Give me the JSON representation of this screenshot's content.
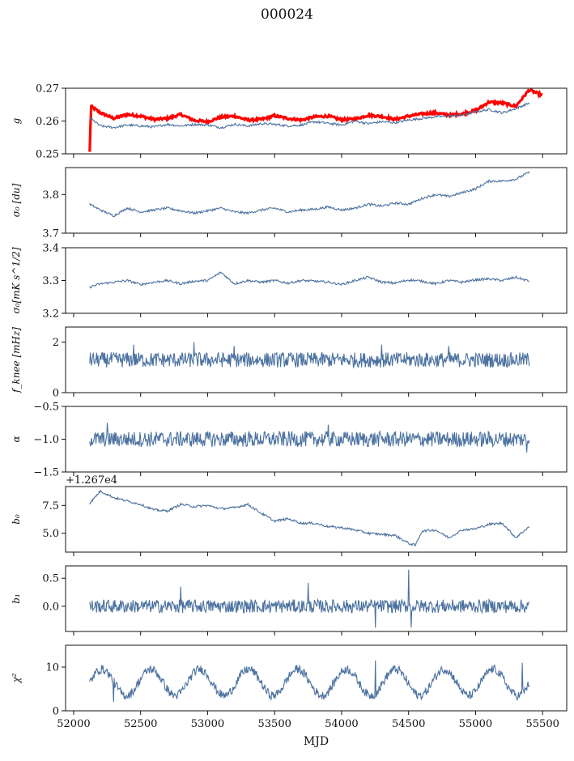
{
  "title": "000024",
  "xlabel": "MJD",
  "x_ticks": [
    52000,
    52500,
    53000,
    53500,
    54000,
    54500,
    55000,
    55500
  ],
  "x_range": [
    51940,
    55680
  ],
  "colors": {
    "series": "#4c72a0",
    "red": "#ff0000",
    "axis": "#111111"
  },
  "chart_data": [
    {
      "type": "line",
      "id": "g",
      "ylabel": "g",
      "ylim": [
        0.25,
        0.27
      ],
      "yticks": [
        "0.25",
        "0.26",
        "0.27"
      ],
      "grid": false,
      "series": [
        {
          "color": "#ff0000",
          "x": [
            52120,
            52130,
            52200,
            52300,
            52400,
            52500,
            52600,
            52700,
            52800,
            52900,
            53000,
            53100,
            53200,
            53300,
            53400,
            53500,
            53600,
            53700,
            53800,
            53900,
            54000,
            54100,
            54200,
            54300,
            54400,
            54500,
            54600,
            54700,
            54800,
            54900,
            55000,
            55100,
            55200,
            55300,
            55400,
            55500
          ],
          "y": [
            0.2505,
            0.2645,
            0.2625,
            0.2608,
            0.262,
            0.2615,
            0.2605,
            0.2608,
            0.262,
            0.2602,
            0.2598,
            0.2612,
            0.2615,
            0.2603,
            0.2605,
            0.2616,
            0.2608,
            0.2603,
            0.2613,
            0.2615,
            0.2604,
            0.2606,
            0.2618,
            0.2614,
            0.2605,
            0.2615,
            0.2622,
            0.2625,
            0.2618,
            0.2622,
            0.2632,
            0.2658,
            0.2655,
            0.2645,
            0.2695,
            0.2678
          ]
        },
        {
          "x": [
            52120,
            52200,
            52300,
            52400,
            52500,
            52600,
            52700,
            52800,
            52900,
            53000,
            53100,
            53200,
            53300,
            53400,
            53500,
            53600,
            53700,
            53800,
            53900,
            54000,
            54100,
            54200,
            54300,
            54400,
            54500,
            54600,
            54700,
            54800,
            54900,
            55000,
            55100,
            55200,
            55300,
            55400
          ],
          "y": [
            0.261,
            0.2585,
            0.258,
            0.2588,
            0.2585,
            0.2582,
            0.259,
            0.2585,
            0.259,
            0.2588,
            0.258,
            0.259,
            0.2585,
            0.2592,
            0.259,
            0.2585,
            0.2588,
            0.2598,
            0.2593,
            0.2588,
            0.26,
            0.2592,
            0.2598,
            0.2595,
            0.2603,
            0.2608,
            0.2613,
            0.2615,
            0.2618,
            0.2628,
            0.2635,
            0.2625,
            0.2638,
            0.2655
          ]
        }
      ]
    },
    {
      "type": "line",
      "id": "sigma0-du",
      "ylabel": "σ₀ [du]",
      "ylim": [
        3.7,
        3.87
      ],
      "yticks": [
        "3.7",
        "3.8"
      ],
      "grid": false,
      "series": [
        {
          "x": [
            52120,
            52200,
            52300,
            52400,
            52500,
            52600,
            52700,
            52800,
            52900,
            53000,
            53100,
            53200,
            53300,
            53400,
            53500,
            53600,
            53700,
            53800,
            53900,
            54000,
            54100,
            54200,
            54300,
            54400,
            54500,
            54600,
            54700,
            54800,
            54900,
            55000,
            55100,
            55200,
            55300,
            55400
          ],
          "y": [
            3.775,
            3.76,
            3.745,
            3.765,
            3.755,
            3.76,
            3.765,
            3.758,
            3.752,
            3.758,
            3.765,
            3.755,
            3.752,
            3.76,
            3.765,
            3.755,
            3.76,
            3.762,
            3.768,
            3.76,
            3.765,
            3.775,
            3.77,
            3.778,
            3.775,
            3.79,
            3.8,
            3.795,
            3.805,
            3.815,
            3.835,
            3.835,
            3.84,
            3.858
          ]
        }
      ]
    },
    {
      "type": "line",
      "id": "sigma0-mk",
      "ylabel": "σ₀[mK s^1/2]",
      "ylim": [
        3.2,
        3.4
      ],
      "yticks": [
        "3.2",
        "3.3",
        "3.4"
      ],
      "grid": false,
      "series": [
        {
          "x": [
            52120,
            52200,
            52300,
            52400,
            52500,
            52600,
            52700,
            52800,
            52900,
            53000,
            53100,
            53200,
            53300,
            53400,
            53500,
            53600,
            53700,
            53800,
            53900,
            54000,
            54100,
            54200,
            54300,
            54400,
            54500,
            54600,
            54700,
            54800,
            54900,
            55000,
            55100,
            55200,
            55300,
            55400
          ],
          "y": [
            3.28,
            3.29,
            3.295,
            3.3,
            3.288,
            3.295,
            3.3,
            3.29,
            3.298,
            3.3,
            3.325,
            3.29,
            3.3,
            3.295,
            3.3,
            3.292,
            3.3,
            3.298,
            3.295,
            3.288,
            3.3,
            3.31,
            3.295,
            3.292,
            3.302,
            3.298,
            3.29,
            3.3,
            3.295,
            3.302,
            3.305,
            3.3,
            3.31,
            3.298
          ]
        }
      ]
    },
    {
      "type": "line",
      "id": "fknee",
      "ylabel": "f_knee [mHz]",
      "ylim": [
        0,
        2.6
      ],
      "yticks": [
        "0",
        "2"
      ],
      "grid": false,
      "series": [
        {
          "x_range": [
            52120,
            55400
          ],
          "mean": 1.3,
          "amplitude": 0.3,
          "spikes": [
            [
              52450,
              1.9
            ],
            [
              52900,
              2.0
            ],
            [
              53200,
              1.85
            ],
            [
              54300,
              1.9
            ],
            [
              54800,
              1.85
            ]
          ],
          "count": 700
        }
      ]
    },
    {
      "type": "line",
      "id": "alpha",
      "ylabel": "α",
      "ylim": [
        -1.5,
        -0.5
      ],
      "yticks": [
        "−1.5",
        "−1.0",
        "−0.5"
      ],
      "grid": false,
      "series": [
        {
          "x_range": [
            52120,
            55400
          ],
          "mean": -1.0,
          "amplitude": 0.12,
          "spikes": [
            [
              52250,
              -0.75
            ],
            [
              53900,
              -0.78
            ],
            [
              55380,
              -1.2
            ]
          ],
          "count": 700
        }
      ]
    },
    {
      "type": "line",
      "id": "b0",
      "ylabel": "b₀",
      "offset_label": "+1.267e4",
      "ylim": [
        3.3,
        9.2
      ],
      "yticks": [
        "5.0",
        "7.5"
      ],
      "grid": false,
      "series": [
        {
          "x": [
            52120,
            52200,
            52300,
            52400,
            52500,
            52600,
            52700,
            52800,
            52900,
            53000,
            53100,
            53200,
            53300,
            53400,
            53500,
            53600,
            53700,
            53800,
            53900,
            54000,
            54100,
            54200,
            54300,
            54400,
            54500,
            54550,
            54600,
            54700,
            54800,
            54900,
            55000,
            55100,
            55200,
            55300,
            55400
          ],
          "y": [
            7.7,
            8.8,
            8.2,
            7.9,
            7.6,
            7.1,
            7.0,
            7.6,
            7.4,
            7.5,
            7.2,
            7.3,
            7.6,
            6.8,
            6.1,
            6.3,
            5.9,
            5.9,
            5.6,
            5.5,
            5.3,
            5.0,
            4.9,
            4.8,
            4.1,
            3.9,
            5.2,
            5.3,
            4.6,
            5.3,
            5.4,
            5.8,
            5.9,
            4.6,
            5.6
          ]
        }
      ]
    },
    {
      "type": "line",
      "id": "b1",
      "ylabel": "b₁",
      "ylim": [
        -0.45,
        0.72
      ],
      "yticks": [
        "0.0",
        "0.5"
      ],
      "grid": false,
      "series": [
        {
          "x_range": [
            52120,
            55400
          ],
          "mean": 0.0,
          "amplitude": 0.12,
          "spikes": [
            [
              52800,
              0.35
            ],
            [
              53750,
              0.42
            ],
            [
              54250,
              -0.38
            ],
            [
              54500,
              0.65
            ],
            [
              54520,
              -0.38
            ]
          ],
          "count": 700
        }
      ]
    },
    {
      "type": "line",
      "id": "chi2",
      "ylabel": "χ²",
      "ylim": [
        0,
        15
      ],
      "yticks": [
        "0",
        "10"
      ],
      "grid": false,
      "series": [
        {
          "x_range": [
            52120,
            55400
          ],
          "mean": 6.5,
          "amplitude": 1.0,
          "wave_amplitude": 3.0,
          "wave_period": 365,
          "spikes": [
            [
              52300,
              2.0
            ],
            [
              54250,
              11.5
            ],
            [
              55350,
              11.0
            ]
          ],
          "count": 700
        }
      ]
    }
  ]
}
